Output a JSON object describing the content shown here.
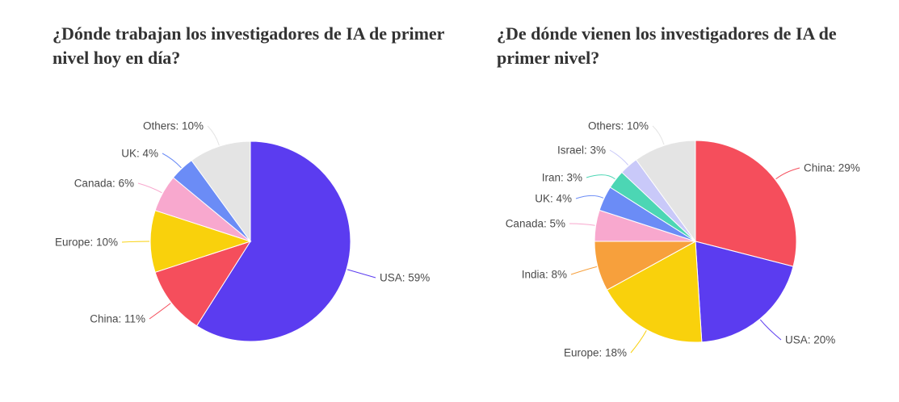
{
  "chart_data": [
    {
      "type": "pie",
      "title": "¿Dónde trabajan los investigadores de IA de primer nivel hoy en día?",
      "unit": "%",
      "categories": [
        "USA",
        "China",
        "Europe",
        "Canada",
        "UK",
        "Others"
      ],
      "values": [
        59,
        11,
        10,
        6,
        4,
        10
      ],
      "colors": [
        "#5b3cf0",
        "#f54e5c",
        "#f9d10c",
        "#f8a8ce",
        "#6b8cf6",
        "#e4e4e4"
      ]
    },
    {
      "type": "pie",
      "title": "¿De dónde vienen los investigadores de IA de primer nivel?",
      "unit": "%",
      "categories": [
        "China",
        "USA",
        "Europe",
        "India",
        "Canada",
        "UK",
        "Iran",
        "Israel",
        "Others"
      ],
      "values": [
        29,
        20,
        18,
        8,
        5,
        4,
        3,
        3,
        10
      ],
      "colors": [
        "#f54e5c",
        "#5b3cf0",
        "#f9d10c",
        "#f7a03c",
        "#f8a8ce",
        "#6b8cf6",
        "#4cd6b4",
        "#c9c9f9",
        "#e4e4e4"
      ]
    }
  ]
}
